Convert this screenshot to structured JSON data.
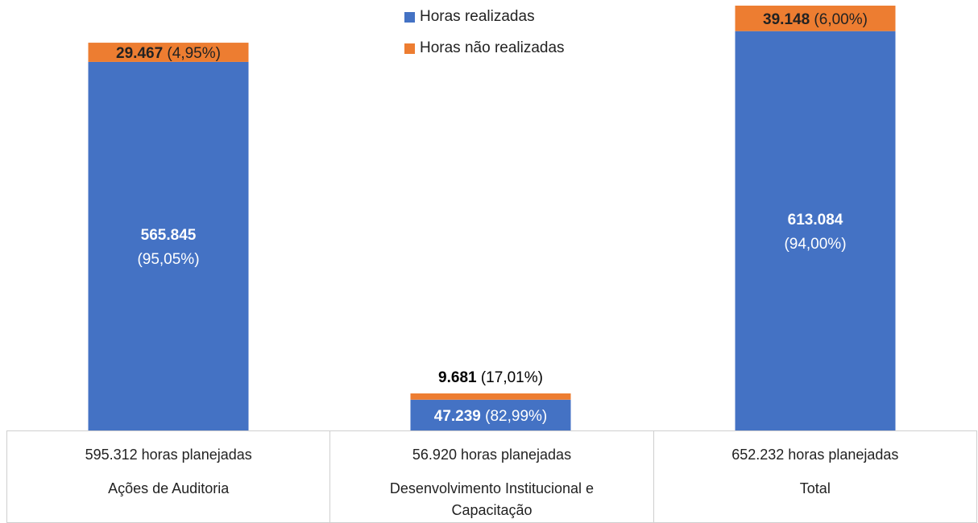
{
  "chart_data": {
    "type": "bar",
    "stacked": true,
    "categories": [
      "Ações de Auditoria",
      "Desenvolvimento Institucional e Capacitação",
      "Total"
    ],
    "planned_labels": [
      "595.312 horas planejadas",
      "56.920 horas planejadas",
      "652.232 horas planejadas"
    ],
    "series": [
      {
        "name": "Horas realizadas",
        "color": "#4472C4",
        "values": [
          565845,
          47239,
          613084
        ],
        "value_labels": [
          "565.845",
          "47.239",
          "613.084"
        ],
        "percent_labels": [
          "(95,05%)",
          "(82,99%)",
          "(94,00%)"
        ]
      },
      {
        "name": "Horas não realizadas",
        "color": "#ED7D31",
        "values": [
          29467,
          9681,
          39148
        ],
        "value_labels": [
          "29.467",
          "9.681",
          "39.148"
        ],
        "percent_labels": [
          "(4,95%)",
          "(17,01%)",
          "(6,00%)"
        ]
      }
    ],
    "ylim": [
      0,
      652232
    ],
    "legend_position": "top-center",
    "grid": false
  }
}
